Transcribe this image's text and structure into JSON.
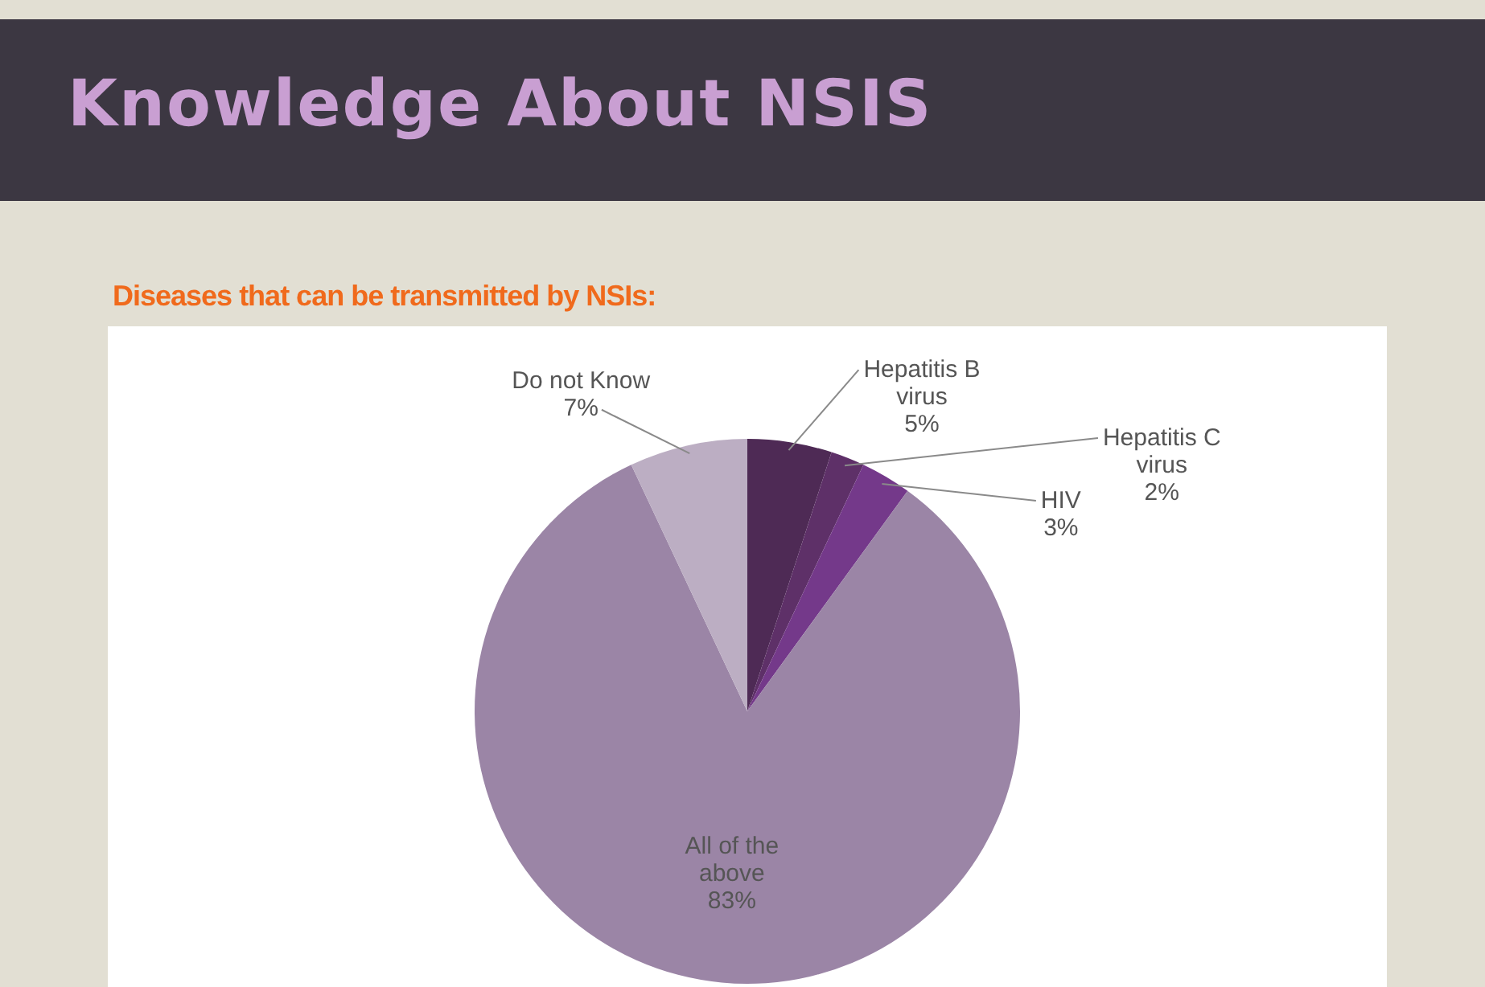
{
  "chart_data": {
    "type": "pie",
    "title": "Knowledge About NSIS",
    "subtitle": "Diseases that can be transmitted by NSIs:",
    "categories": [
      "Hepatitis B virus",
      "Hepatitis C virus",
      "HIV",
      "All of the above",
      "Do not Know"
    ],
    "values": [
      5,
      2,
      3,
      83,
      7
    ],
    "colors": [
      "#4e2a55",
      "#5e3068",
      "#74398a",
      "#9b85a6",
      "#bcaec3"
    ],
    "value_labels": [
      "5%",
      "2%",
      "3%",
      "83%",
      "7%"
    ]
  }
}
